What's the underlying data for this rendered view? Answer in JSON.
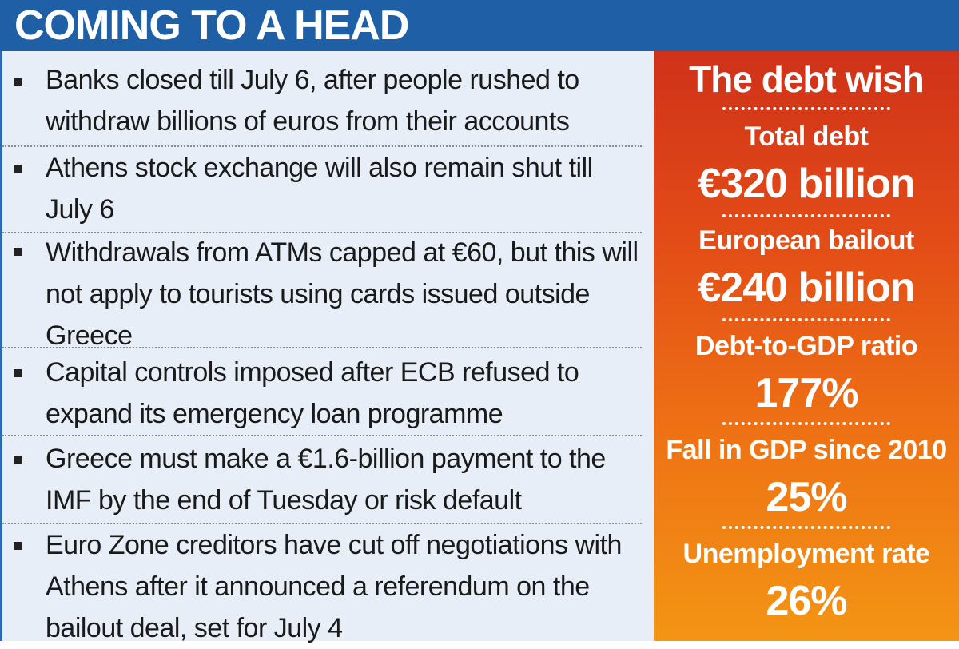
{
  "header": {
    "title": "COMING TO A HEAD"
  },
  "bullets": [
    "Banks closed till July 6, after people rushed to withdraw billions of euros from their accounts",
    "Athens stock exchange will also remain shut till July 6",
    "Withdrawals from ATMs capped at €60, but this will not apply to tourists using cards issued outside Greece",
    "Capital controls imposed after ECB refused to expand its emergency loan programme",
    "Greece must make a €1.6-billion payment to the IMF by the end of Tuesday or risk default",
    "Euro Zone creditors have cut off negotiations with Athens after it announced a referendum on the bailout deal, set for July 4"
  ],
  "sidebar": {
    "title": "The debt wish",
    "stats": [
      {
        "label": "Total debt",
        "value": "€320 billion"
      },
      {
        "label": "European bailout",
        "value": "€240 billion"
      },
      {
        "label": "Debt-to-GDP ratio",
        "value": "177%"
      },
      {
        "label": "Fall in GDP since 2010",
        "value": "25%"
      },
      {
        "label": "Unemployment rate",
        "value": "26%"
      }
    ]
  },
  "colors": {
    "header_bg": "#1f5fa6",
    "left_bg": "#e7eef7",
    "sidebar_gradient_top": "#cf3219",
    "sidebar_gradient_bottom": "#f39514"
  }
}
